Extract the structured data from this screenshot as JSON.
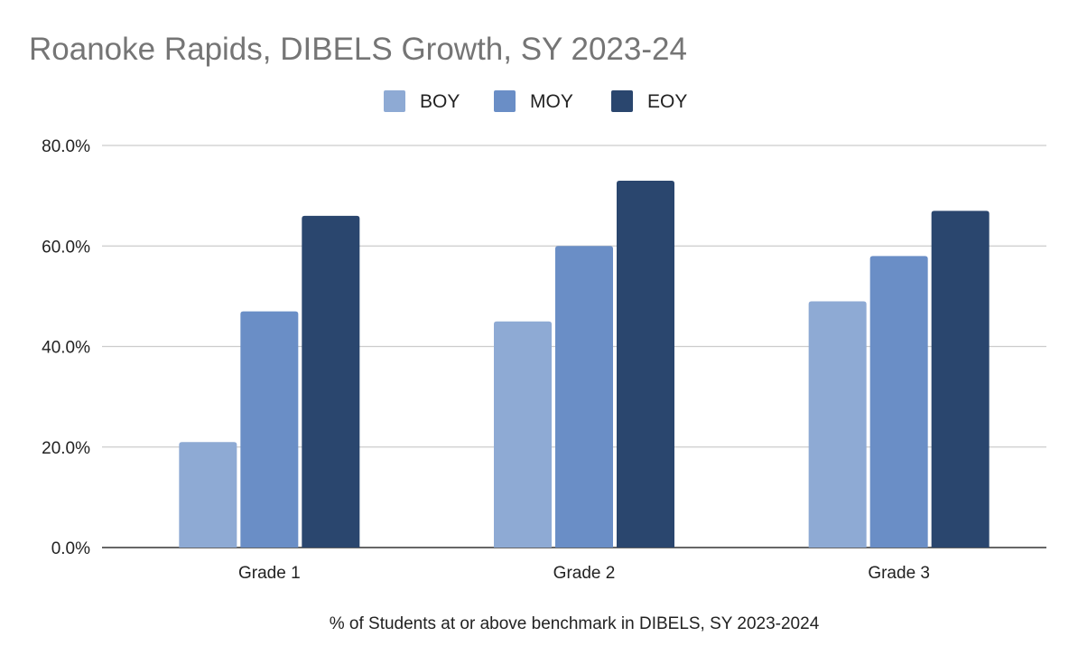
{
  "chart_data": {
    "type": "bar",
    "title": "Roanoke Rapids, DIBELS Growth, SY 2023-24",
    "xlabel": "% of Students at or above benchmark in DIBELS, SY 2023-2024",
    "ylabel": "",
    "categories": [
      "Grade 1",
      "Grade 2",
      "Grade 3"
    ],
    "series": [
      {
        "name": "BOY",
        "color": "#8eaad4",
        "values": [
          21,
          45,
          49
        ]
      },
      {
        "name": "MOY",
        "color": "#6a8ec6",
        "values": [
          47,
          60,
          58
        ]
      },
      {
        "name": "EOY",
        "color": "#2a466e",
        "values": [
          66,
          73,
          67
        ]
      }
    ],
    "yticks": [
      "0.0%",
      "20.0%",
      "40.0%",
      "60.0%",
      "80.0%"
    ],
    "ylim": [
      0,
      80
    ],
    "grid": true,
    "legend": "top-center"
  }
}
